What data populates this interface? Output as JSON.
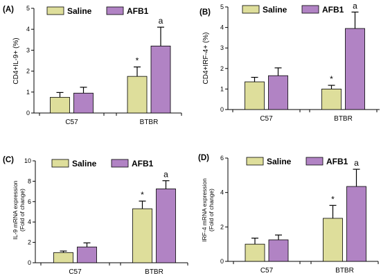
{
  "colors": {
    "saline": "#dede9b",
    "afb1": "#b183c4"
  },
  "chart_data": [
    {
      "panel": "(A)",
      "type": "bar",
      "ylabel": "CD4+IL-9+ (%)",
      "ylim": [
        0,
        5
      ],
      "yticks": [
        0,
        1,
        2,
        3,
        4,
        5
      ],
      "categories": [
        "C57",
        "BTBR"
      ],
      "series": [
        {
          "name": "Saline",
          "values": [
            0.75,
            1.75
          ],
          "errors": [
            0.23,
            0.45
          ]
        },
        {
          "name": "AFB1",
          "values": [
            0.95,
            3.2
          ],
          "errors": [
            0.28,
            0.9
          ]
        }
      ],
      "annotations": {
        "saline": [
          "",
          "*"
        ],
        "afb1": [
          "",
          "a"
        ]
      }
    },
    {
      "panel": "(B)",
      "type": "bar",
      "ylabel": "CD4+IRF-4+ (%)",
      "ylim": [
        0,
        5
      ],
      "yticks": [
        0,
        1,
        2,
        3,
        4,
        5
      ],
      "categories": [
        "C57",
        "BTBR"
      ],
      "series": [
        {
          "name": "Saline",
          "values": [
            1.35,
            1.0
          ],
          "errors": [
            0.22,
            0.18
          ]
        },
        {
          "name": "AFB1",
          "values": [
            1.65,
            3.95
          ],
          "errors": [
            0.38,
            0.8
          ]
        }
      ],
      "annotations": {
        "saline": [
          "",
          "*"
        ],
        "afb1": [
          "",
          "a"
        ]
      }
    },
    {
      "panel": "(C)",
      "type": "bar",
      "ylabel": [
        "IL-9 mRNA expression",
        "(Fold of change)"
      ],
      "ylim": [
        0,
        10
      ],
      "yticks": [
        0,
        2,
        4,
        6,
        8,
        10
      ],
      "categories": [
        "C57",
        "BTBR"
      ],
      "series": [
        {
          "name": "Saline",
          "values": [
            1.0,
            5.3
          ],
          "errors": [
            0.15,
            0.75
          ]
        },
        {
          "name": "AFB1",
          "values": [
            1.55,
            7.25
          ],
          "errors": [
            0.4,
            0.8
          ]
        }
      ],
      "annotations": {
        "saline": [
          "",
          "*"
        ],
        "afb1": [
          "",
          "a"
        ]
      }
    },
    {
      "panel": "(D)",
      "type": "bar",
      "ylabel": [
        "IRF-4 mRNA expression",
        "(Fold of change)"
      ],
      "ylim": [
        0,
        6
      ],
      "yticks": [
        0,
        2,
        4,
        6
      ],
      "categories": [
        "C57",
        "BTBR"
      ],
      "series": [
        {
          "name": "Saline",
          "values": [
            1.0,
            2.5
          ],
          "errors": [
            0.35,
            0.75
          ]
        },
        {
          "name": "AFB1",
          "values": [
            1.25,
            4.35
          ],
          "errors": [
            0.28,
            1.0
          ]
        }
      ],
      "annotations": {
        "saline": [
          "",
          "*"
        ],
        "afb1": [
          "",
          "a"
        ]
      }
    }
  ]
}
